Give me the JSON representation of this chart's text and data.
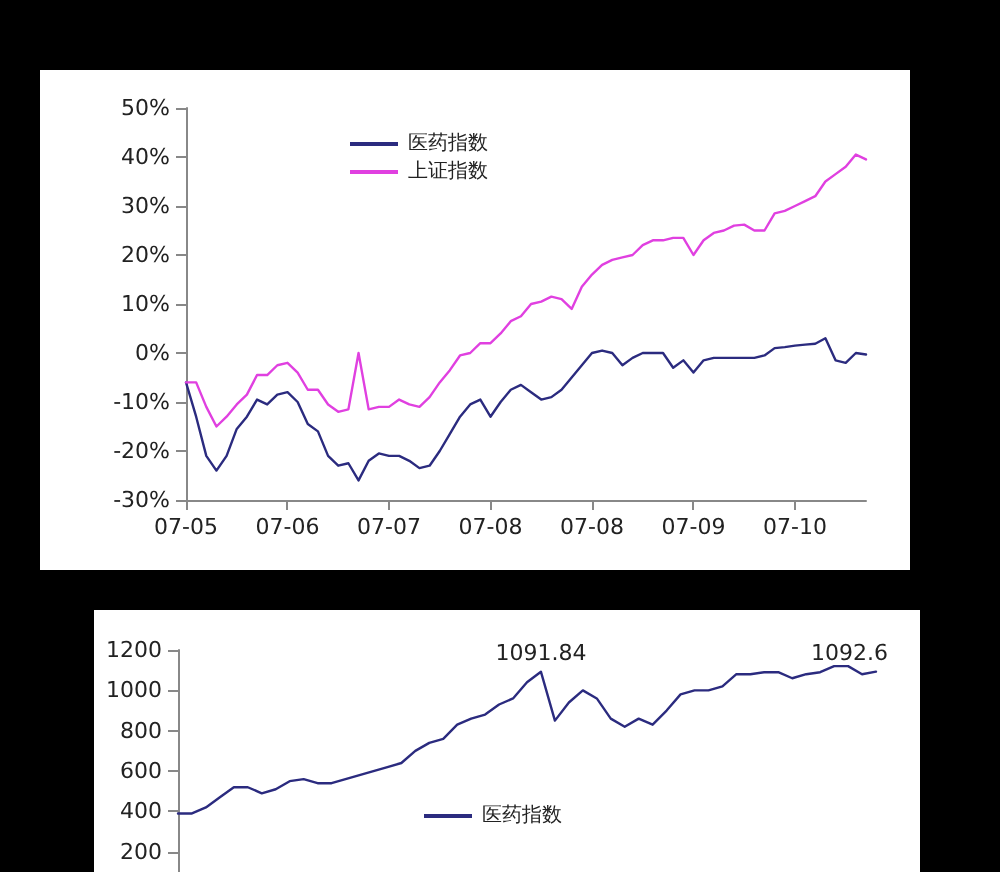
{
  "chart_data": [
    {
      "type": "line",
      "legend": "top left",
      "marker": "none",
      "line_style": "solid",
      "grid": false,
      "categories": [
        "07-05",
        null,
        null,
        null,
        null,
        null,
        null,
        null,
        null,
        null,
        "07-06",
        null,
        null,
        null,
        null,
        null,
        null,
        null,
        null,
        null,
        "07-07",
        null,
        null,
        null,
        null,
        null,
        null,
        null,
        null,
        null,
        "07-08",
        null,
        null,
        null,
        null,
        null,
        null,
        null,
        null,
        null,
        "07-08",
        null,
        null,
        null,
        null,
        null,
        null,
        null,
        null,
        null,
        "07-09",
        null,
        null,
        null,
        null,
        null,
        null,
        null,
        null,
        null,
        "07-10",
        null,
        null,
        null,
        null,
        null,
        null,
        null
      ],
      "ylim": [
        -30,
        50
      ],
      "yticks": [
        {
          "value": -30,
          "label": "-30%"
        },
        {
          "value": -20,
          "label": "-20%"
        },
        {
          "value": -10,
          "label": "-10%"
        },
        {
          "value": 0,
          "label": "0%"
        },
        {
          "value": 10,
          "label": "10%"
        },
        {
          "value": 20,
          "label": "20%"
        },
        {
          "value": 30,
          "label": "30%"
        },
        {
          "value": 40,
          "label": "40%"
        },
        {
          "value": 50,
          "label": "50%"
        }
      ],
      "series": [
        {
          "name": "医药指数",
          "color": "#2b2b7f",
          "values": [
            -6,
            -13,
            -21,
            -24,
            -21,
            -15.5,
            -13,
            -9.5,
            -10.5,
            -8.5,
            -8,
            -10,
            -14.5,
            -16,
            -21,
            -23,
            -22.5,
            -26,
            -22,
            -20.5,
            -21,
            -21,
            -22,
            -23.5,
            -23,
            -20,
            -16.5,
            -13,
            -10.5,
            -9.5,
            -13,
            -10,
            -7.5,
            -6.5,
            -8,
            -9.5,
            -9,
            -7.5,
            -5,
            -2.5,
            0,
            0.5,
            0,
            -2.5,
            -1,
            0,
            0,
            0,
            -3,
            -1.5,
            -4,
            -1.5,
            -1,
            -1,
            -1,
            -1,
            -1,
            -0.5,
            1,
            1.2,
            1.5,
            1.7,
            1.9,
            3,
            -1.5,
            -2,
            0,
            -0.3
          ]
        },
        {
          "name": "上证指数",
          "color": "#e040e0",
          "values": [
            -6,
            -6,
            -11,
            -15,
            -13,
            -10.5,
            -8.5,
            -4.5,
            -4.5,
            -2.5,
            -2,
            -4,
            -7.5,
            -7.5,
            -10.5,
            -12,
            -11.5,
            0,
            -11.5,
            -11,
            -11,
            -9.5,
            -10.5,
            -11,
            -9,
            -6,
            -3.5,
            -0.5,
            0,
            2,
            2,
            4,
            6.5,
            7.5,
            10,
            10.5,
            11.5,
            11,
            9,
            13.5,
            16,
            18,
            19,
            19.5,
            20,
            22,
            23,
            23,
            23.5,
            23.5,
            20,
            23,
            24.5,
            25,
            26,
            26.2,
            25,
            25,
            28.5,
            29,
            30,
            31,
            32,
            35,
            36.5,
            38,
            40.5,
            39.5
          ]
        }
      ]
    },
    {
      "type": "line",
      "legend": "bottom",
      "marker": "none",
      "line_style": "solid",
      "grid": false,
      "tick_labels": "y",
      "categories": [
        null,
        null,
        null,
        null,
        null,
        null,
        null,
        null,
        null,
        null,
        null,
        null,
        null,
        null,
        null,
        null,
        null,
        null,
        null,
        null,
        null,
        null,
        null,
        null,
        null,
        null,
        null,
        null,
        null,
        null,
        null,
        null,
        null,
        null,
        null,
        null,
        null,
        null,
        null,
        null,
        null,
        null,
        null,
        null,
        null,
        null,
        null,
        null,
        null,
        null,
        null
      ],
      "ylim": [
        100,
        1200
      ],
      "yticks": [
        200,
        400,
        600,
        800,
        1000,
        1200
      ],
      "annotations": [
        {
          "text": "1091.84",
          "y": 1091.84
        },
        {
          "text": "1092.6",
          "y": 1092.6
        }
      ],
      "series": [
        {
          "name": "医药指数",
          "color": "#2b2b7f",
          "values": [
            390,
            390,
            420,
            470,
            520,
            520,
            490,
            510,
            550,
            560,
            540,
            540,
            560,
            580,
            600,
            620,
            640,
            700,
            740,
            760,
            830,
            860,
            880,
            930,
            960,
            1040,
            1091.84,
            850,
            940,
            1000,
            960,
            860,
            820,
            860,
            830,
            900,
            980,
            1000,
            1000,
            1020,
            1080,
            1080,
            1090,
            1090,
            1060,
            1080,
            1090,
            1120,
            1120,
            1080,
            1092.6
          ]
        }
      ]
    }
  ]
}
